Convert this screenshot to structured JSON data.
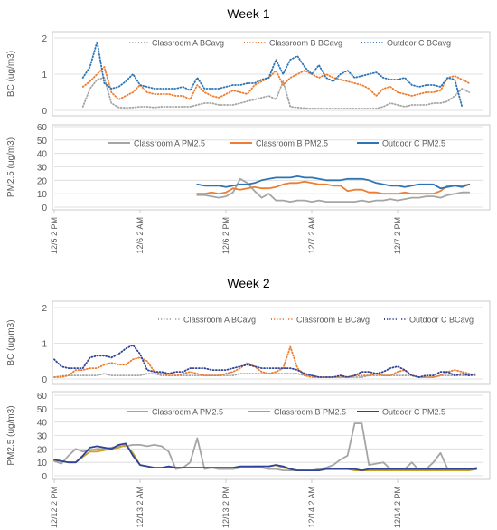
{
  "colors": {
    "classroom_a": "#a5a5a5",
    "classroom_b": "#ed7d31",
    "outdoor_c": "#2e75b6",
    "outdoor_c_week2": "#2f4496",
    "classroom_b_week2_pm": "#c9a227",
    "grid": "#d9d9d9",
    "text": "#595959",
    "title": "#404040",
    "frame": "#bfbfbf"
  },
  "x_ticks": {
    "week1": [
      "12/5 2 PM",
      "12/6 2 AM",
      "12/6 2 PM",
      "12/7 2 AM",
      "12/7 2 PM"
    ],
    "week2": [
      "12/12 2 PM",
      "12/13 2 AM",
      "12/13 2 PM",
      "12/14 2 AM",
      "12/14 2 PM"
    ]
  },
  "chart_data": [
    {
      "type": "line",
      "title": "Week 1",
      "ylabel": "BC (ug/m3)",
      "ylim": [
        0,
        2
      ],
      "yticks": [
        0,
        1,
        2
      ],
      "grid": true,
      "legend": "top",
      "x_unit": "hours since 12/5 2 PM",
      "x": [
        4,
        5,
        6,
        7,
        8,
        9,
        10,
        11,
        12,
        13,
        14,
        15,
        16,
        17,
        18,
        19,
        20,
        21,
        22,
        23,
        24,
        25,
        26,
        27,
        28,
        29,
        30,
        31,
        32,
        33,
        34,
        35,
        36,
        37,
        38,
        39,
        40,
        41,
        42,
        43,
        44,
        45,
        46,
        47,
        48,
        49,
        50,
        51,
        52,
        53,
        54,
        55,
        56,
        57,
        58
      ],
      "series": [
        {
          "name": "Classroom A BCavg",
          "line": "dotted",
          "color_key": "classroom_a",
          "values": [
            0.1,
            0.6,
            0.85,
            0.9,
            0.2,
            0.08,
            0.07,
            0.08,
            0.1,
            0.1,
            0.08,
            0.1,
            0.1,
            0.1,
            0.1,
            0.1,
            0.15,
            0.2,
            0.2,
            0.15,
            0.15,
            0.15,
            0.2,
            0.25,
            0.3,
            0.35,
            0.4,
            0.3,
            0.8,
            0.1,
            0.08,
            0.06,
            0.05,
            0.05,
            0.05,
            0.05,
            0.05,
            0.05,
            0.05,
            0.05,
            0.05,
            0.05,
            0.1,
            0.2,
            0.15,
            0.1,
            0.15,
            0.15,
            0.15,
            0.2,
            0.2,
            0.25,
            0.4,
            0.6,
            0.5
          ]
        },
        {
          "name": "Classroom B BCavg",
          "line": "dotted",
          "color_key": "classroom_b",
          "values": [
            0.65,
            0.8,
            1.0,
            1.2,
            0.5,
            0.3,
            0.4,
            0.5,
            0.7,
            0.5,
            0.45,
            0.45,
            0.45,
            0.4,
            0.4,
            0.3,
            0.7,
            0.5,
            0.4,
            0.35,
            0.45,
            0.55,
            0.5,
            0.45,
            0.7,
            0.8,
            0.9,
            1.1,
            0.7,
            0.9,
            1.0,
            1.1,
            1.0,
            0.9,
            1.0,
            0.9,
            0.85,
            0.8,
            0.75,
            0.7,
            0.6,
            0.4,
            0.6,
            0.65,
            0.5,
            0.45,
            0.4,
            0.45,
            0.5,
            0.5,
            0.55,
            0.9,
            0.95,
            0.85,
            0.75
          ]
        },
        {
          "name": "Outdoor C BCavg",
          "line": "dotted",
          "color_key": "outdoor_c",
          "values": [
            0.9,
            1.2,
            1.9,
            0.75,
            0.6,
            0.65,
            0.8,
            1.0,
            0.7,
            0.65,
            0.6,
            0.6,
            0.6,
            0.6,
            0.65,
            0.55,
            0.9,
            0.6,
            0.6,
            0.6,
            0.65,
            0.7,
            0.7,
            0.75,
            0.75,
            0.85,
            0.9,
            1.4,
            1.0,
            1.4,
            1.5,
            1.2,
            1.0,
            1.25,
            0.9,
            0.8,
            1.0,
            1.1,
            0.9,
            0.95,
            1.0,
            1.05,
            0.9,
            0.85,
            0.85,
            0.9,
            0.7,
            0.65,
            0.7,
            0.7,
            0.65,
            0.9,
            0.85,
            0.1,
            null
          ]
        }
      ]
    },
    {
      "type": "line",
      "title": "",
      "ylabel": "PM2.5 (ug/m3)",
      "ylim": [
        0,
        60
      ],
      "yticks": [
        0,
        10,
        20,
        30,
        40,
        50,
        60
      ],
      "grid": true,
      "legend": "top",
      "x_unit": "hours since 12/5 2 PM",
      "x": [
        20,
        21,
        22,
        23,
        24,
        25,
        26,
        27,
        28,
        29,
        30,
        31,
        32,
        33,
        34,
        35,
        36,
        37,
        38,
        39,
        40,
        41,
        42,
        43,
        44,
        45,
        46,
        47,
        48,
        49,
        50,
        51,
        52,
        53,
        54,
        55,
        56,
        57,
        58
      ],
      "series": [
        {
          "name": "Classroom A  PM2.5",
          "line": "solid",
          "color_key": "classroom_a",
          "values": [
            9,
            9,
            8,
            7,
            8,
            11,
            21,
            18,
            12,
            7,
            10,
            5,
            5,
            4,
            5,
            5,
            4,
            5,
            4,
            4,
            4,
            4,
            4,
            5,
            4,
            5,
            5,
            6,
            5,
            6,
            7,
            7,
            8,
            8,
            7,
            9,
            10,
            11,
            11
          ]
        },
        {
          "name": "Classroom B  PM2.5",
          "line": "solid",
          "color_key": "classroom_b",
          "values": [
            10,
            10,
            11,
            10,
            11,
            14,
            13,
            14,
            15,
            14,
            14,
            15,
            17,
            18,
            18,
            19,
            18,
            17,
            17,
            16,
            16,
            12,
            13,
            13,
            11,
            11,
            10,
            10,
            10,
            11,
            10,
            10,
            10,
            10,
            12,
            16,
            16,
            16,
            17
          ]
        },
        {
          "name": "Outdoor C PM2.5",
          "line": "solid",
          "color_key": "outdoor_c",
          "values": [
            17,
            16,
            16,
            16,
            15,
            16,
            17,
            17,
            18,
            20,
            21,
            22,
            22,
            22,
            23,
            22,
            22,
            21,
            20,
            20,
            20,
            21,
            21,
            21,
            20,
            18,
            17,
            16,
            16,
            15,
            16,
            17,
            17,
            17,
            14,
            15,
            16,
            15,
            17
          ]
        }
      ]
    },
    {
      "type": "line",
      "title": "Week 2",
      "ylabel": "BC (ug/m3)",
      "ylim": [
        0,
        2
      ],
      "yticks": [
        0,
        1,
        2
      ],
      "grid": true,
      "legend": "top",
      "x_unit": "hours since 12/12 2 PM",
      "x": [
        0,
        1,
        2,
        3,
        4,
        5,
        6,
        7,
        8,
        9,
        10,
        11,
        12,
        13,
        14,
        15,
        16,
        17,
        18,
        19,
        20,
        21,
        22,
        23,
        24,
        25,
        26,
        27,
        28,
        29,
        30,
        31,
        32,
        33,
        34,
        35,
        36,
        37,
        38,
        39,
        40,
        41,
        42,
        43,
        44,
        45,
        46,
        47,
        48,
        49,
        50,
        51,
        52,
        53,
        54,
        55,
        56,
        57,
        58,
        59
      ],
      "series": [
        {
          "name": "Classroom A BCavg",
          "line": "dotted",
          "color_key": "classroom_a",
          "values": [
            0.05,
            0.08,
            0.1,
            0.1,
            0.1,
            0.1,
            0.1,
            0.15,
            0.1,
            0.1,
            0.1,
            0.1,
            0.1,
            0.15,
            0.15,
            0.1,
            0.1,
            0.1,
            0.1,
            0.1,
            0.1,
            0.1,
            0.1,
            0.1,
            0.1,
            0.1,
            0.15,
            0.15,
            0.15,
            0.15,
            0.15,
            0.15,
            0.15,
            0.15,
            0.15,
            0.1,
            0.1,
            0.05,
            0.05,
            0.05,
            0.05,
            0.05,
            0.05,
            0.05,
            0.1,
            0.1,
            0.1,
            0.1,
            0.1,
            0.1,
            0.1,
            0.05,
            0.05,
            0.05,
            0.1,
            0.1,
            0.1,
            0.1,
            0.1,
            0.1
          ]
        },
        {
          "name": "Classroom B BCavg",
          "line": "dotted",
          "color_key": "classroom_b",
          "values": [
            0.05,
            0.05,
            0.1,
            0.25,
            0.25,
            0.3,
            0.3,
            0.4,
            0.45,
            0.4,
            0.4,
            0.55,
            0.6,
            0.5,
            0.2,
            0.15,
            0.1,
            0.1,
            0.15,
            0.2,
            0.15,
            0.1,
            0.1,
            0.1,
            0.15,
            0.2,
            0.3,
            0.45,
            0.35,
            0.2,
            0.15,
            0.2,
            0.3,
            0.9,
            0.3,
            0.1,
            0.05,
            0.05,
            0.05,
            0.05,
            0.05,
            0.05,
            0.1,
            0.1,
            0.1,
            0.15,
            0.1,
            0.1,
            0.2,
            0.25,
            0.1,
            0.05,
            0.05,
            0.05,
            0.1,
            0.2,
            0.25,
            0.2,
            0.15,
            0.1
          ]
        },
        {
          "name": "Outdoor C BCavg",
          "line": "dotted",
          "color_key": "outdoor_c_week2",
          "values": [
            0.55,
            0.35,
            0.3,
            0.3,
            0.3,
            0.6,
            0.65,
            0.65,
            0.6,
            0.7,
            0.85,
            0.95,
            0.7,
            0.25,
            0.2,
            0.2,
            0.15,
            0.2,
            0.2,
            0.3,
            0.3,
            0.3,
            0.25,
            0.25,
            0.25,
            0.3,
            0.35,
            0.4,
            0.35,
            0.3,
            0.3,
            0.3,
            0.3,
            0.3,
            0.25,
            0.15,
            0.1,
            0.05,
            0.05,
            0.05,
            0.1,
            0.05,
            0.1,
            0.2,
            0.2,
            0.15,
            0.2,
            0.3,
            0.35,
            0.25,
            0.1,
            0.05,
            0.1,
            0.1,
            0.2,
            0.2,
            0.1,
            0.15,
            0.1,
            0.15
          ]
        }
      ]
    },
    {
      "type": "line",
      "title": "",
      "ylabel": "PM2.5 (ug/m3)",
      "ylim": [
        0,
        60
      ],
      "yticks": [
        0,
        10,
        20,
        30,
        40,
        50,
        60
      ],
      "grid": true,
      "legend": "top",
      "x_unit": "hours since 12/12 2 PM",
      "x": [
        0,
        1,
        2,
        3,
        4,
        5,
        6,
        7,
        8,
        9,
        10,
        11,
        12,
        13,
        14,
        15,
        16,
        17,
        18,
        19,
        20,
        21,
        22,
        23,
        24,
        25,
        26,
        27,
        28,
        29,
        30,
        31,
        32,
        33,
        34,
        35,
        36,
        37,
        38,
        39,
        40,
        41,
        42,
        43,
        44,
        45,
        46,
        47,
        48,
        49,
        50,
        51,
        52,
        53,
        54,
        55,
        56,
        57,
        58,
        59
      ],
      "series": [
        {
          "name": "Classroom A  PM2.5",
          "line": "solid",
          "color_key": "classroom_a",
          "values": [
            11,
            9,
            15,
            20,
            18,
            19,
            20,
            20,
            21,
            22,
            22,
            23,
            23,
            22,
            23,
            22,
            18,
            5,
            6,
            10,
            28,
            5,
            6,
            5,
            5,
            5,
            6,
            6,
            6,
            6,
            5,
            5,
            4,
            4,
            4,
            4,
            4,
            5,
            6,
            8,
            12,
            15,
            39,
            39,
            8,
            9,
            10,
            5,
            4,
            5,
            10,
            4,
            5,
            10,
            17,
            5,
            4,
            4,
            5,
            6
          ]
        },
        {
          "name": "Classroom B  PM2.5",
          "line": "solid",
          "color_key": "classroom_b_week2_pm",
          "values": [
            11,
            11,
            10,
            10,
            14,
            18,
            18,
            19,
            20,
            21,
            23,
            17,
            8,
            7,
            6,
            6,
            6,
            6,
            6,
            6,
            6,
            6,
            6,
            6,
            6,
            6,
            6,
            6,
            7,
            7,
            7,
            8,
            6,
            5,
            4,
            4,
            4,
            4,
            5,
            5,
            5,
            5,
            4,
            4,
            4,
            4,
            4,
            4,
            4,
            4,
            4,
            4,
            4,
            4,
            4,
            4,
            4,
            4,
            4,
            5
          ]
        },
        {
          "name": "Outdoor C PM2.5",
          "line": "solid",
          "color_key": "outdoor_c_week2",
          "values": [
            12,
            11,
            10,
            10,
            15,
            21,
            22,
            21,
            20,
            23,
            24,
            15,
            8,
            7,
            6,
            6,
            7,
            6,
            6,
            6,
            6,
            6,
            6,
            6,
            6,
            6,
            7,
            7,
            7,
            7,
            7,
            8,
            7,
            5,
            4,
            4,
            4,
            4,
            5,
            5,
            5,
            5,
            5,
            4,
            5,
            5,
            5,
            5,
            5,
            5,
            5,
            5,
            5,
            5,
            5,
            5,
            5,
            5,
            5,
            5
          ]
        }
      ]
    }
  ]
}
